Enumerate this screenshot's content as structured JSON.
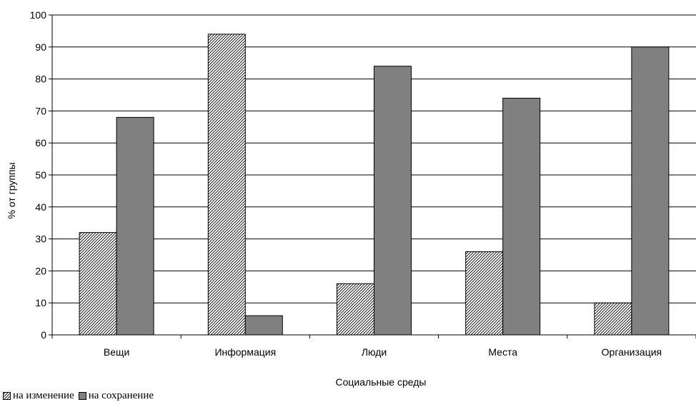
{
  "chart_data": {
    "type": "bar",
    "categories": [
      "Вещи",
      "Информация",
      "Люди",
      "Места",
      "Организация"
    ],
    "series": [
      {
        "name": "на изменение",
        "values": [
          32,
          94,
          16,
          26,
          10
        ],
        "fill": "hatch",
        "color": "#000000"
      },
      {
        "name": "на сохранение",
        "values": [
          68,
          6,
          84,
          74,
          90
        ],
        "fill": "solid",
        "color": "#808080"
      }
    ],
    "title": "",
    "xlabel": "Социальные среды",
    "ylabel": "% от группы",
    "ylim": [
      0,
      100
    ],
    "yticks": [
      0,
      10,
      20,
      30,
      40,
      50,
      60,
      70,
      80,
      90,
      100
    ],
    "grid": true,
    "legend_position": "bottom-left"
  }
}
